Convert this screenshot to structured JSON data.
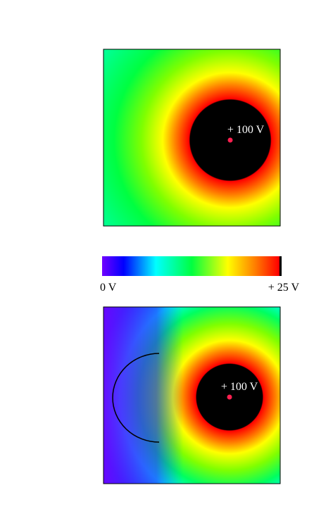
{
  "panels": [
    {
      "label": "+ 100 V"
    },
    {
      "label": "+ 100 V"
    }
  ],
  "colorbar": {
    "min_label": "0 V",
    "max_label": "+ 25 V"
  }
}
